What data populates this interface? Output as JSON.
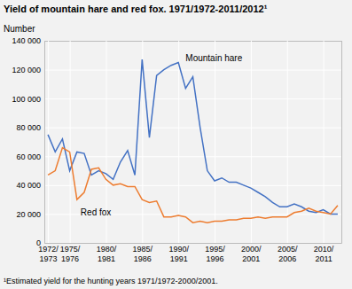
{
  "chart_data": {
    "type": "line",
    "title": "Yield of mountain hare and red fox. 1971/1972-2011/2012¹",
    "ylabel": "Number",
    "footnote": "¹Estimated yield for the hunting years 1971/1972-2000/2001.",
    "categories": [
      "1972/\n1973",
      null,
      null,
      "1975/\n1976",
      null,
      null,
      null,
      null,
      "1980/\n1981",
      null,
      null,
      null,
      null,
      "1985/\n1986",
      null,
      null,
      null,
      null,
      "1990/\n1991",
      null,
      null,
      null,
      null,
      "1995/\n1996",
      null,
      null,
      null,
      null,
      "2000/\n2001",
      null,
      null,
      null,
      null,
      "2005/\n2006",
      null,
      null,
      null,
      null,
      "2010/\n2011",
      null,
      null
    ],
    "series": [
      {
        "color": "#4472C4",
        "values": [
          75000,
          63000,
          72000,
          50000,
          63000,
          62000,
          47000,
          50000,
          48000,
          44000,
          56000,
          64000,
          47000,
          127000,
          73000,
          116000,
          120000,
          123000,
          125000,
          107000,
          115000,
          80000,
          50000,
          43000,
          45000,
          42000,
          42000,
          40000,
          38000,
          35000,
          32000,
          28000,
          25000,
          25000,
          27000,
          25000,
          22000,
          21000,
          23000,
          20000,
          20000
        ]
      },
      {
        "color": "#ED7D31",
        "values": [
          47000,
          50000,
          66000,
          63000,
          30000,
          35000,
          51000,
          52000,
          44000,
          40000,
          41000,
          39000,
          39000,
          30000,
          28000,
          29000,
          18000,
          18000,
          19000,
          18000,
          14000,
          15000,
          14000,
          15000,
          15000,
          16000,
          16000,
          17000,
          17000,
          18000,
          17000,
          18000,
          18000,
          18000,
          21000,
          22000,
          24000,
          22000,
          21000,
          20000,
          26000
        ]
      }
    ],
    "annotations": [
      {
        "text": "Mountain hare",
        "x": 19,
        "y": 126000
      },
      {
        "text": "Red fox",
        "x": 4.5,
        "y": 19000
      }
    ],
    "ylim": [
      0,
      140000
    ],
    "yticks": [
      0,
      {
        "value": 20000,
        "label": "20 000"
      },
      {
        "value": 40000,
        "label": "40 000"
      },
      {
        "value": 60000,
        "label": "60 000"
      },
      {
        "value": 80000,
        "label": "80 000"
      },
      {
        "value": 100000,
        "label": "100 000"
      },
      {
        "value": 120000,
        "label": "120 000"
      },
      {
        "value": 140000,
        "label": "140 000"
      }
    ],
    "grid": true
  }
}
